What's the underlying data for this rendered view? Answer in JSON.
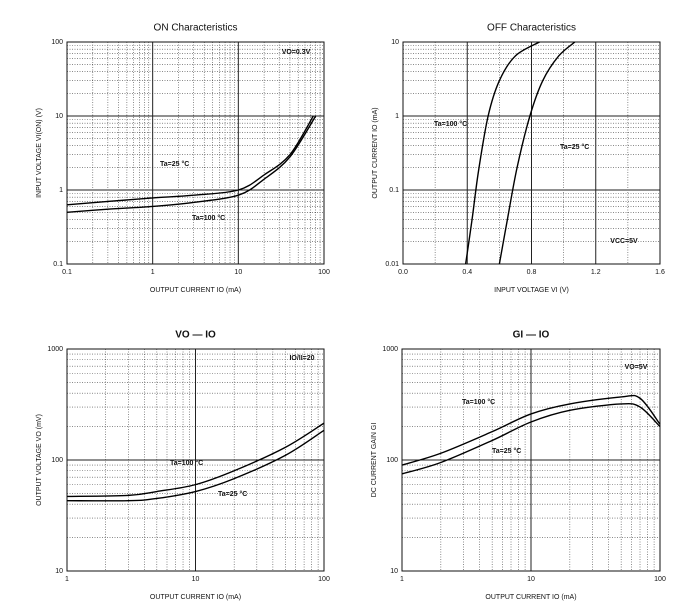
{
  "chart_data": [
    {
      "type": "line",
      "title": "ON Characteristics",
      "x_label": "OUTPUT CURRENT   IO   (mA)",
      "y_label": "INPUT VOLTAGE   VI(ON)   (V)",
      "xlog": true,
      "ylog": true,
      "xlim": [
        0.1,
        100
      ],
      "ylim": [
        0.1,
        100
      ],
      "xticks": [
        0.1,
        1,
        10,
        100
      ],
      "yticks": [
        0.1,
        1,
        10,
        100
      ],
      "grid": true,
      "minor_grid": true,
      "annotations": [
        "VO=0.3V"
      ],
      "series": [
        {
          "name": "Ta=25 °C",
          "color": "#000000",
          "x": [
            0.1,
            0.3,
            1,
            3,
            10,
            20,
            40,
            75
          ],
          "values": [
            0.63,
            0.7,
            0.78,
            0.85,
            1.0,
            1.6,
            3,
            10
          ]
        },
        {
          "name": "Ta=100 °C",
          "color": "#000000",
          "x": [
            0.1,
            0.3,
            1,
            3,
            10,
            20,
            40,
            80
          ],
          "values": [
            0.5,
            0.55,
            0.6,
            0.68,
            0.85,
            1.4,
            2.8,
            10
          ]
        }
      ]
    },
    {
      "type": "line",
      "title": "OFF Characteristics",
      "x_label": "INPUT VOLTAGE   VI   (V)",
      "y_label": "OUTPUT CURRENT   IO   (mA)",
      "xlog": false,
      "ylog": true,
      "xlim": [
        0,
        1.6
      ],
      "ylim": [
        0.01,
        10
      ],
      "xticks": [
        {
          "value": 0,
          "label": "0.0"
        },
        0.4,
        0.8,
        1.2,
        1.6
      ],
      "yticks": [
        0.01,
        0.1,
        1,
        10
      ],
      "grid": true,
      "minor_grid": true,
      "annotations": [
        "VCC=5V"
      ],
      "series": [
        {
          "name": "Ta=100 °C",
          "color": "#000000",
          "x": [
            0.39,
            0.43,
            0.47,
            0.53,
            0.6,
            0.7,
            0.85
          ],
          "values": [
            0.01,
            0.04,
            0.18,
            1,
            3,
            6.5,
            10
          ]
        },
        {
          "name": "Ta=25 °C",
          "color": "#000000",
          "x": [
            0.6,
            0.65,
            0.71,
            0.79,
            0.87,
            0.97,
            1.07
          ],
          "values": [
            0.01,
            0.04,
            0.2,
            1,
            3,
            6.5,
            10
          ]
        }
      ]
    },
    {
      "type": "line",
      "title": "VO — IO",
      "x_label": "OUTPUT CURRENT   IO   (mA)",
      "y_label": "OUTPUT VOLTAGE   VO   (mV)",
      "xlog": true,
      "ylog": true,
      "xlim": [
        1,
        100
      ],
      "ylim": [
        10,
        1000
      ],
      "xticks": [
        1,
        10,
        100
      ],
      "yticks": [
        10,
        100,
        1000
      ],
      "grid": true,
      "minor_grid": true,
      "annotations": [
        "IO/II=20"
      ],
      "series": [
        {
          "name": "Ta=100 °C",
          "color": "#000000",
          "x": [
            1,
            3,
            5,
            10,
            20,
            50,
            100
          ],
          "values": [
            47,
            48,
            52,
            60,
            80,
            130,
            215
          ]
        },
        {
          "name": "Ta=25 °C",
          "color": "#000000",
          "x": [
            1,
            3,
            5,
            10,
            20,
            50,
            100
          ],
          "values": [
            43,
            43,
            45,
            52,
            68,
            110,
            185
          ]
        }
      ]
    },
    {
      "type": "line",
      "title": "GI — IO",
      "x_label": "OUTPUT CURRENT   IO   (mA)",
      "y_label": "DC CURRENT GAIN   GI",
      "xlog": true,
      "ylog": true,
      "xlim": [
        1,
        100
      ],
      "ylim": [
        10,
        1000
      ],
      "xticks": [
        1,
        10,
        100
      ],
      "yticks": [
        10,
        100,
        1000
      ],
      "grid": true,
      "minor_grid": true,
      "annotations": [
        "VO=5V"
      ],
      "series": [
        {
          "name": "Ta=100 °C",
          "color": "#000000",
          "x": [
            1,
            2,
            5,
            10,
            20,
            50,
            70,
            100
          ],
          "values": [
            90,
            115,
            180,
            260,
            320,
            370,
            360,
            210
          ]
        },
        {
          "name": "Ta=25 °C",
          "color": "#000000",
          "x": [
            1,
            2,
            5,
            10,
            20,
            50,
            70,
            100
          ],
          "values": [
            75,
            95,
            150,
            220,
            280,
            320,
            300,
            200
          ]
        }
      ]
    }
  ]
}
